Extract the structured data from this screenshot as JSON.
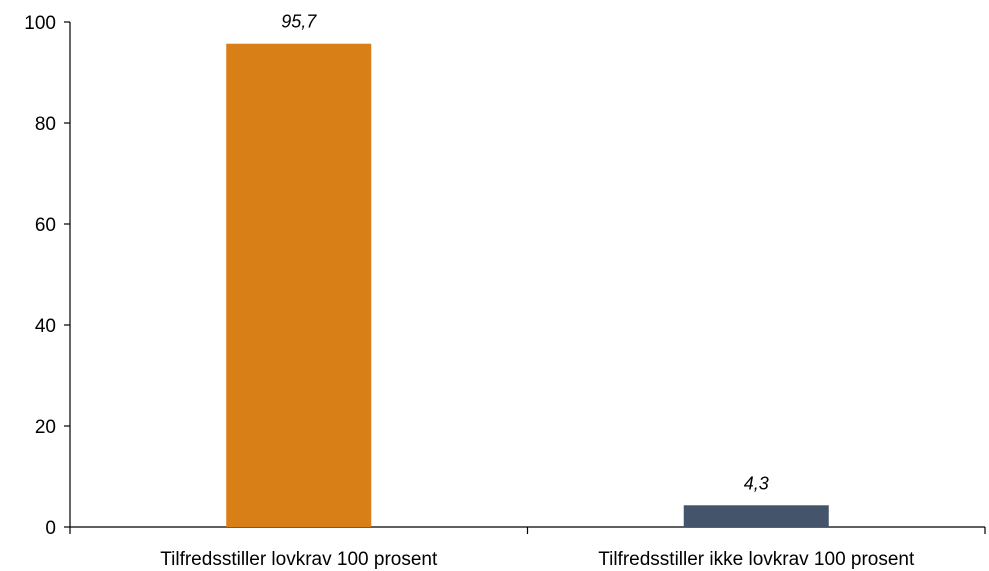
{
  "chart_data": {
    "type": "bar",
    "title": "",
    "xlabel": "",
    "ylabel": "",
    "categories": [
      "Tilfredsstiller lovkrav 100 prosent",
      "Tilfredsstiller ikke lovkrav 100 prosent"
    ],
    "values": [
      95.7,
      4.3
    ],
    "data_labels": [
      "95,7",
      "4,3"
    ],
    "bar_colors": [
      "#D97F17",
      "#44546A"
    ],
    "ylim": [
      0,
      100
    ],
    "yticks": [
      0,
      20,
      40,
      60,
      80,
      100
    ],
    "ytick_labels": [
      "0",
      "20",
      "40",
      "60",
      "80",
      "100"
    ],
    "grid": false,
    "legend": "none"
  }
}
